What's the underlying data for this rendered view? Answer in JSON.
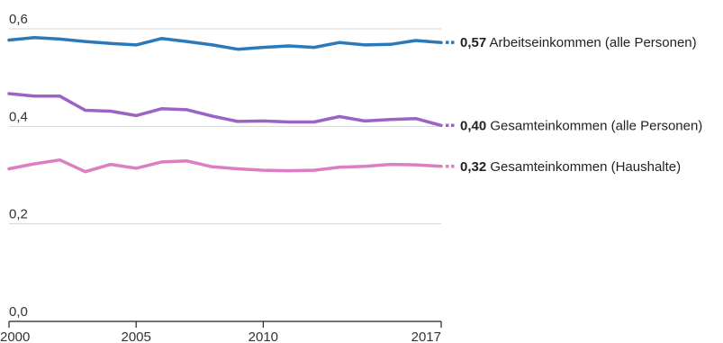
{
  "chart_data": {
    "type": "line",
    "title": "",
    "xlabel": "",
    "ylabel": "",
    "x": [
      2000,
      2001,
      2002,
      2003,
      2004,
      2005,
      2006,
      2007,
      2008,
      2009,
      2010,
      2011,
      2012,
      2013,
      2014,
      2015,
      2016,
      2017
    ],
    "xticks": [
      2000,
      2005,
      2010,
      2017
    ],
    "xtick_labels": [
      "2000",
      "2005",
      "2010",
      "2017"
    ],
    "yticks": [
      0.0,
      0.2,
      0.4,
      0.6
    ],
    "ytick_labels": [
      "0,0",
      "0,2",
      "0,4",
      "0,6"
    ],
    "xlim": [
      2000,
      2017
    ],
    "ylim": [
      0,
      0.6
    ],
    "grid": "horizontal",
    "legend": "direct-labels-right",
    "series": [
      {
        "name": "Arbeitseinkommen (alle Personen)",
        "value_label": "0,57",
        "color": "#2b79b8",
        "values": [
          0.577,
          0.582,
          0.579,
          0.574,
          0.57,
          0.567,
          0.58,
          0.574,
          0.567,
          0.558,
          0.562,
          0.565,
          0.562,
          0.572,
          0.567,
          0.568,
          0.576,
          0.572
        ]
      },
      {
        "name": "Gesamteinkommen (alle Personen)",
        "value_label": "0,40",
        "color": "#9b63c4",
        "values": [
          0.467,
          0.462,
          0.462,
          0.433,
          0.431,
          0.422,
          0.436,
          0.434,
          0.421,
          0.41,
          0.411,
          0.409,
          0.409,
          0.42,
          0.411,
          0.414,
          0.416,
          0.402
        ]
      },
      {
        "name": "Gesamteinkommen (Haushalte)",
        "value_label": "0,32",
        "color": "#dd7dc3",
        "values": [
          0.313,
          0.323,
          0.331,
          0.307,
          0.322,
          0.314,
          0.327,
          0.329,
          0.317,
          0.313,
          0.31,
          0.309,
          0.31,
          0.316,
          0.318,
          0.322,
          0.321,
          0.318
        ]
      }
    ]
  }
}
